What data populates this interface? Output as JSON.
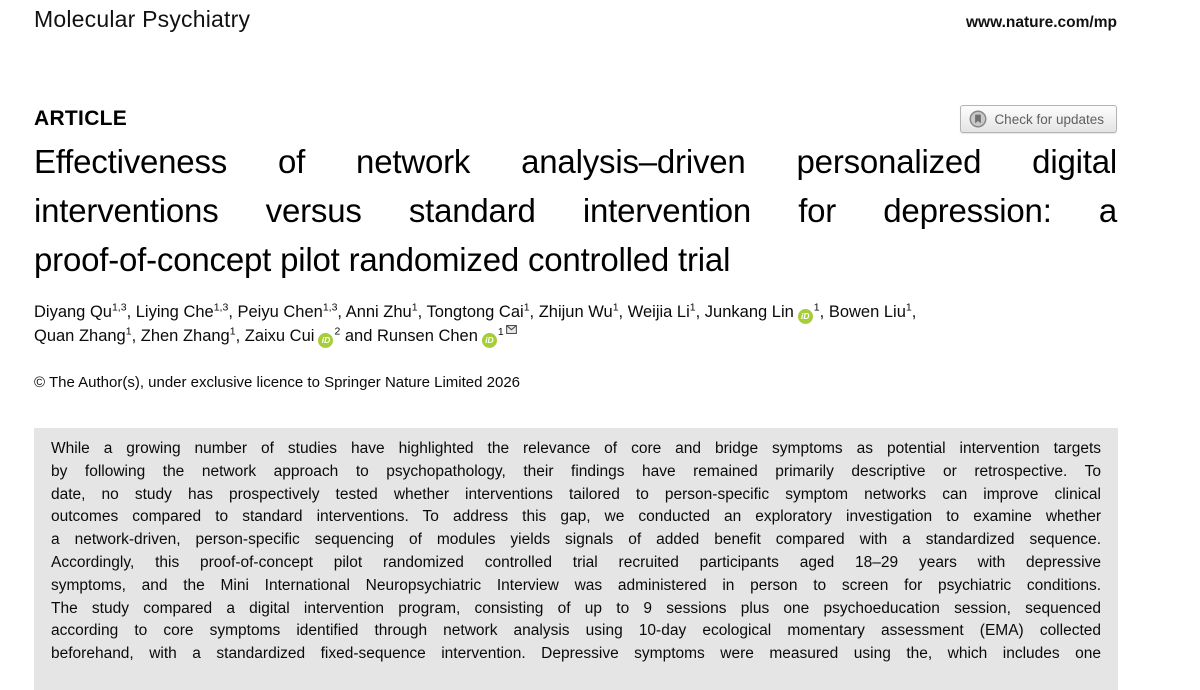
{
  "page": {
    "journal": "Molecular Psychiatry",
    "site_url": "www.nature.com/mp",
    "article_label": "ARTICLE",
    "check_updates_label": "Check for updates",
    "title_lines": [
      "Effectiveness of network analysis–driven personalized digital",
      "interventions versus standard intervention for depression: a",
      "proof-of-concept pilot randomized controlled trial"
    ],
    "copyright": "© The Author(s), under exclusive licence to Springer Nature Limited 2026"
  },
  "authors": {
    "lines": [
      [
        {
          "name": "Diyang Qu",
          "sup": "1,3",
          "orcid": false,
          "email": false,
          "sep": ", "
        },
        {
          "name": "Liying Che",
          "sup": "1,3",
          "orcid": false,
          "email": false,
          "sep": ", "
        },
        {
          "name": "Peiyu Chen",
          "sup": "1,3",
          "orcid": false,
          "email": false,
          "sep": ", "
        },
        {
          "name": "Anni Zhu",
          "sup": "1",
          "orcid": false,
          "email": false,
          "sep": ", "
        },
        {
          "name": "Tongtong Cai",
          "sup": "1",
          "orcid": false,
          "email": false,
          "sep": ", "
        },
        {
          "name": "Zhijun Wu",
          "sup": "1",
          "orcid": false,
          "email": false,
          "sep": ", "
        },
        {
          "name": "Weijia Li",
          "sup": "1",
          "orcid": false,
          "email": false,
          "sep": ", "
        },
        {
          "name": "Junkang Lin",
          "sup": "1",
          "orcid": true,
          "email": false,
          "sep": ", "
        },
        {
          "name": "Bowen Liu",
          "sup": "1",
          "orcid": false,
          "email": false,
          "sep": ","
        }
      ],
      [
        {
          "name": "Quan Zhang",
          "sup": "1",
          "orcid": false,
          "email": false,
          "sep": ", "
        },
        {
          "name": "Zhen Zhang",
          "sup": "1",
          "orcid": false,
          "email": false,
          "sep": ", "
        },
        {
          "name": "Zaixu Cui",
          "sup": "2",
          "orcid": true,
          "email": false,
          "sep": " and "
        },
        {
          "name": "Runsen Chen",
          "sup": "1",
          "orcid": true,
          "email": true,
          "sep": ""
        }
      ]
    ],
    "orcid_icon_label": "iD"
  },
  "abstract": {
    "lines": [
      "While a growing number of studies have highlighted the relevance of core and bridge symptoms as potential intervention targets",
      "by following the network approach to psychopathology, their findings have remained primarily descriptive or retrospective. To",
      "date, no study has prospectively tested whether interventions tailored to person-specific symptom networks can improve clinical",
      "outcomes compared to standard interventions. To address this gap, we conducted an exploratory investigation to examine whether",
      "a network-driven, person-specific sequencing of modules yields signals of added benefit compared with a standardized sequence.",
      "Accordingly, this proof-of-concept pilot randomized controlled trial recruited participants aged 18–29 years with depressive",
      "symptoms, and the Mini International Neuropsychiatric Interview was administered in person to screen for psychiatric conditions.",
      "The study compared a digital intervention program, consisting of up to 9 sessions plus one psychoeducation session, sequenced",
      "according to core symptoms identified through network analysis using 10-day ecological momentary assessment (EMA) collected",
      "beforehand, with a standardized fixed-sequence intervention. Depressive symptoms were measured using the, which includes one"
    ]
  },
  "colors": {
    "orcid_green": "#a6ce39",
    "abstract_bg": "#e5e5e5",
    "button_text": "#5f5f5f"
  },
  "icons": {
    "crossmark": "crossmark-bookmark-icon",
    "orcid": "orcid-id-icon",
    "email": "envelope-icon"
  }
}
